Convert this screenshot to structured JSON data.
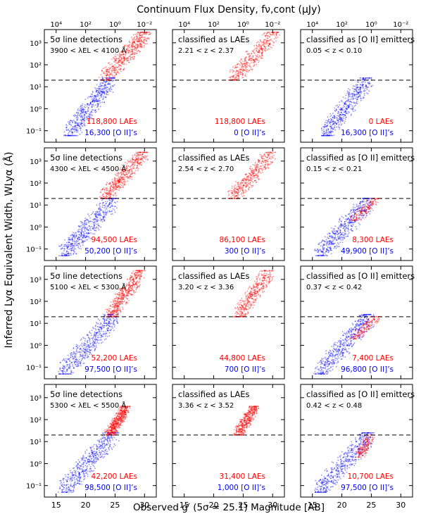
{
  "figure": {
    "top_axis_title": "Continuum Flux Density, fν,cont (μJy)",
    "bottom_axis_title": "Observed g′ (5σ = 25.1) Magnitude [AB]",
    "y_axis_title": "Inferred Lyα Equivalent Width, WLyα (Å)"
  },
  "colors": {
    "lae": "#ff0000",
    "oii": "#0000ff",
    "dashed_line": "#000000"
  },
  "chart_data": {
    "type": "scatter",
    "grid": false,
    "xlim": [
      13,
      32
    ],
    "ylim": [
      0.03,
      4000
    ],
    "y_scale": "log",
    "x_ticks": [
      15,
      20,
      25,
      30
    ],
    "x_tick_labels": [
      "15",
      "20",
      "25",
      "30"
    ],
    "y_ticks": [
      0.1,
      1,
      10,
      100,
      1000
    ],
    "y_tick_labels": [
      "10⁻¹",
      "10⁰",
      "10¹",
      "10²",
      "10³"
    ],
    "top_ticks": [
      "10⁴",
      "10²",
      "10⁰",
      "10⁻²"
    ],
    "threshold_ew": 20,
    "column_titles": [
      "5σ line detections",
      "classified as LAEs",
      "classified as [O II] emitters"
    ],
    "rows": [
      {
        "range_text": "3900 < λEL < 4100 Å",
        "lae_z": "2.21 < z < 2.37",
        "oii_z": "0.05 < z < 0.10",
        "all": {
          "lae": "118,800 LAEs",
          "oii": "16,300 [O II]’s"
        },
        "laes": {
          "lae": "118,800 LAEs",
          "oii": "0 [O II]’s"
        },
        "oiis": {
          "lae": "0 LAEs",
          "oii": "16,300 [O II]’s"
        }
      },
      {
        "range_text": "4300 < λEL < 4500 Å",
        "lae_z": "2.54 < z < 2.70",
        "oii_z": "0.15 < z < 0.21",
        "all": {
          "lae": "94,500 LAEs",
          "oii": "50,200 [O II]’s"
        },
        "laes": {
          "lae": "86,100 LAEs",
          "oii": "300 [O II]’s"
        },
        "oiis": {
          "lae": "8,300 LAEs",
          "oii": "49,900 [O II]’s"
        }
      },
      {
        "range_text": "5100 < λEL < 5300 Å",
        "lae_z": "3.20 < z < 3.36",
        "oii_z": "0.37 < z < 0.42",
        "all": {
          "lae": "52,200 LAEs",
          "oii": "97,500 [O II]’s"
        },
        "laes": {
          "lae": "44,800 LAEs",
          "oii": "700 [O II]’s"
        },
        "oiis": {
          "lae": "7,400 LAEs",
          "oii": "96,800 [O II]’s"
        }
      },
      {
        "range_text": "5300 < λEL < 5500 Å",
        "lae_z": "3.36 < z < 3.52",
        "oii_z": "0.42 < z < 0.48",
        "all": {
          "lae": "42,200 LAEs",
          "oii": "98,500 [O II]’s"
        },
        "laes": {
          "lae": "31,400 LAEs",
          "oii": "1,000 [O II]’s"
        },
        "oiis": {
          "lae": "10,700 LAEs",
          "oii": "97,500 [O II]’s"
        }
      }
    ],
    "distributions": [
      {
        "lae": {
          "g": [
            23,
            30.5
          ],
          "ew": [
            20,
            3000
          ]
        },
        "oii": {
          "g": [
            17,
            24.5
          ],
          "ew": [
            0.06,
            25
          ]
        },
        "oii_lae": {
          "g": [
            23,
            30.5
          ],
          "ew": [
            20,
            3000
          ]
        },
        "lae_oii": null
      },
      {
        "lae": {
          "g": [
            23,
            30
          ],
          "ew": [
            20,
            2500
          ]
        },
        "oii": {
          "g": [
            16,
            25
          ],
          "ew": [
            0.05,
            20
          ]
        },
        "oii_lae": {
          "g": [
            21,
            26
          ],
          "ew": [
            3,
            40
          ]
        },
        "lae_oii": {
          "g": [
            22,
            26
          ],
          "ew": [
            2,
            20
          ]
        }
      },
      {
        "lae": {
          "g": [
            24,
            29.5
          ],
          "ew": [
            20,
            2500
          ]
        },
        "oii": {
          "g": [
            16,
            25
          ],
          "ew": [
            0.05,
            25
          ]
        },
        "oii_lae": {
          "g": [
            22,
            26
          ],
          "ew": [
            3,
            40
          ]
        },
        "lae_oii": {
          "g": [
            22,
            26
          ],
          "ew": [
            2,
            20
          ]
        }
      },
      {
        "lae": {
          "g": [
            24,
            27
          ],
          "ew": [
            20,
            400
          ]
        },
        "oii": {
          "g": [
            16,
            25
          ],
          "ew": [
            0.05,
            25
          ]
        },
        "oii_lae": {
          "g": [
            22,
            25.5
          ],
          "ew": [
            5,
            25
          ]
        },
        "lae_oii": {
          "g": [
            23,
            25
          ],
          "ew": [
            2,
            20
          ]
        }
      }
    ]
  }
}
